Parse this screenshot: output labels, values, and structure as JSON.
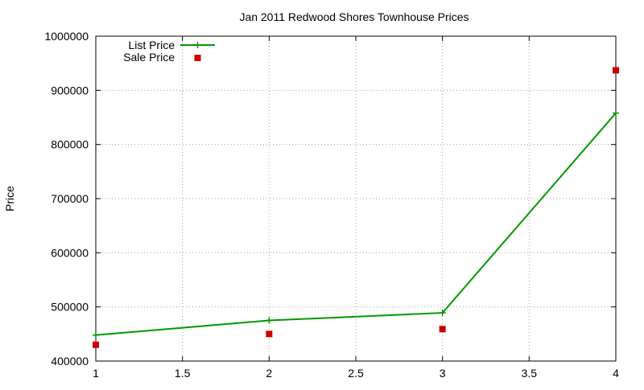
{
  "chart_data": {
    "type": "line",
    "title": "Jan 2011 Redwood Shores Townhouse Prices",
    "xlabel": "",
    "ylabel": "Price",
    "xlim": [
      1,
      4
    ],
    "ylim": [
      400000,
      1000000
    ],
    "x_ticks": [
      1,
      1.5,
      2,
      2.5,
      3,
      3.5,
      4
    ],
    "x_tick_labels": [
      "1",
      "1.5",
      "2",
      "2.5",
      "3",
      "3.5",
      "4"
    ],
    "y_ticks": [
      400000,
      500000,
      600000,
      700000,
      800000,
      900000,
      1000000
    ],
    "y_tick_labels": [
      "400000",
      "500000",
      "600000",
      "700000",
      "800000",
      "900000",
      "1000000"
    ],
    "grid": true,
    "legend_position": "top-left",
    "series": [
      {
        "name": "List Price",
        "style": "line-with-plus-markers",
        "color": "#009900",
        "x": [
          1,
          2,
          3,
          4
        ],
        "y": [
          448000,
          475000,
          489000,
          858000
        ]
      },
      {
        "name": "Sale Price",
        "style": "square-markers",
        "color": "#cc0000",
        "x": [
          1,
          2,
          3,
          4
        ],
        "y": [
          430000,
          450000,
          459000,
          937000
        ]
      }
    ]
  }
}
